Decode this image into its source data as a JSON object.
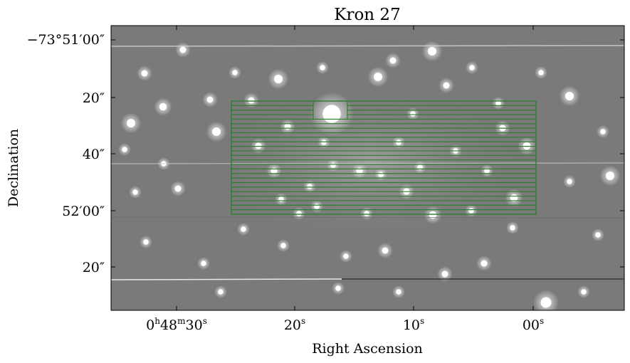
{
  "title": "Kron 27",
  "xlabel": "Right Ascension",
  "ylabel": "Declination",
  "ra_ticks": [
    {
      "label": "0h48m30s",
      "pre": "0",
      "sup1": "h",
      "mid1": "48",
      "sup2": "m",
      "mid2": "30",
      "sup3": "s"
    },
    {
      "label": "20s",
      "pre": "20",
      "sup1": "s"
    },
    {
      "label": "10s",
      "pre": "10",
      "sup1": "s"
    },
    {
      "label": "00s",
      "pre": "00",
      "sup1": "s"
    }
  ],
  "dec_ticks": [
    "−73°51′00″",
    "20″",
    "40″",
    "52′00″",
    "20″"
  ],
  "colors": {
    "background": "#7a7a7a",
    "grid_overlay": "#2e7d32",
    "stars": "#ffffff",
    "axes": "#000000"
  },
  "overlay": {
    "shape": "rectangular slit grid",
    "num_slits": 25
  }
}
